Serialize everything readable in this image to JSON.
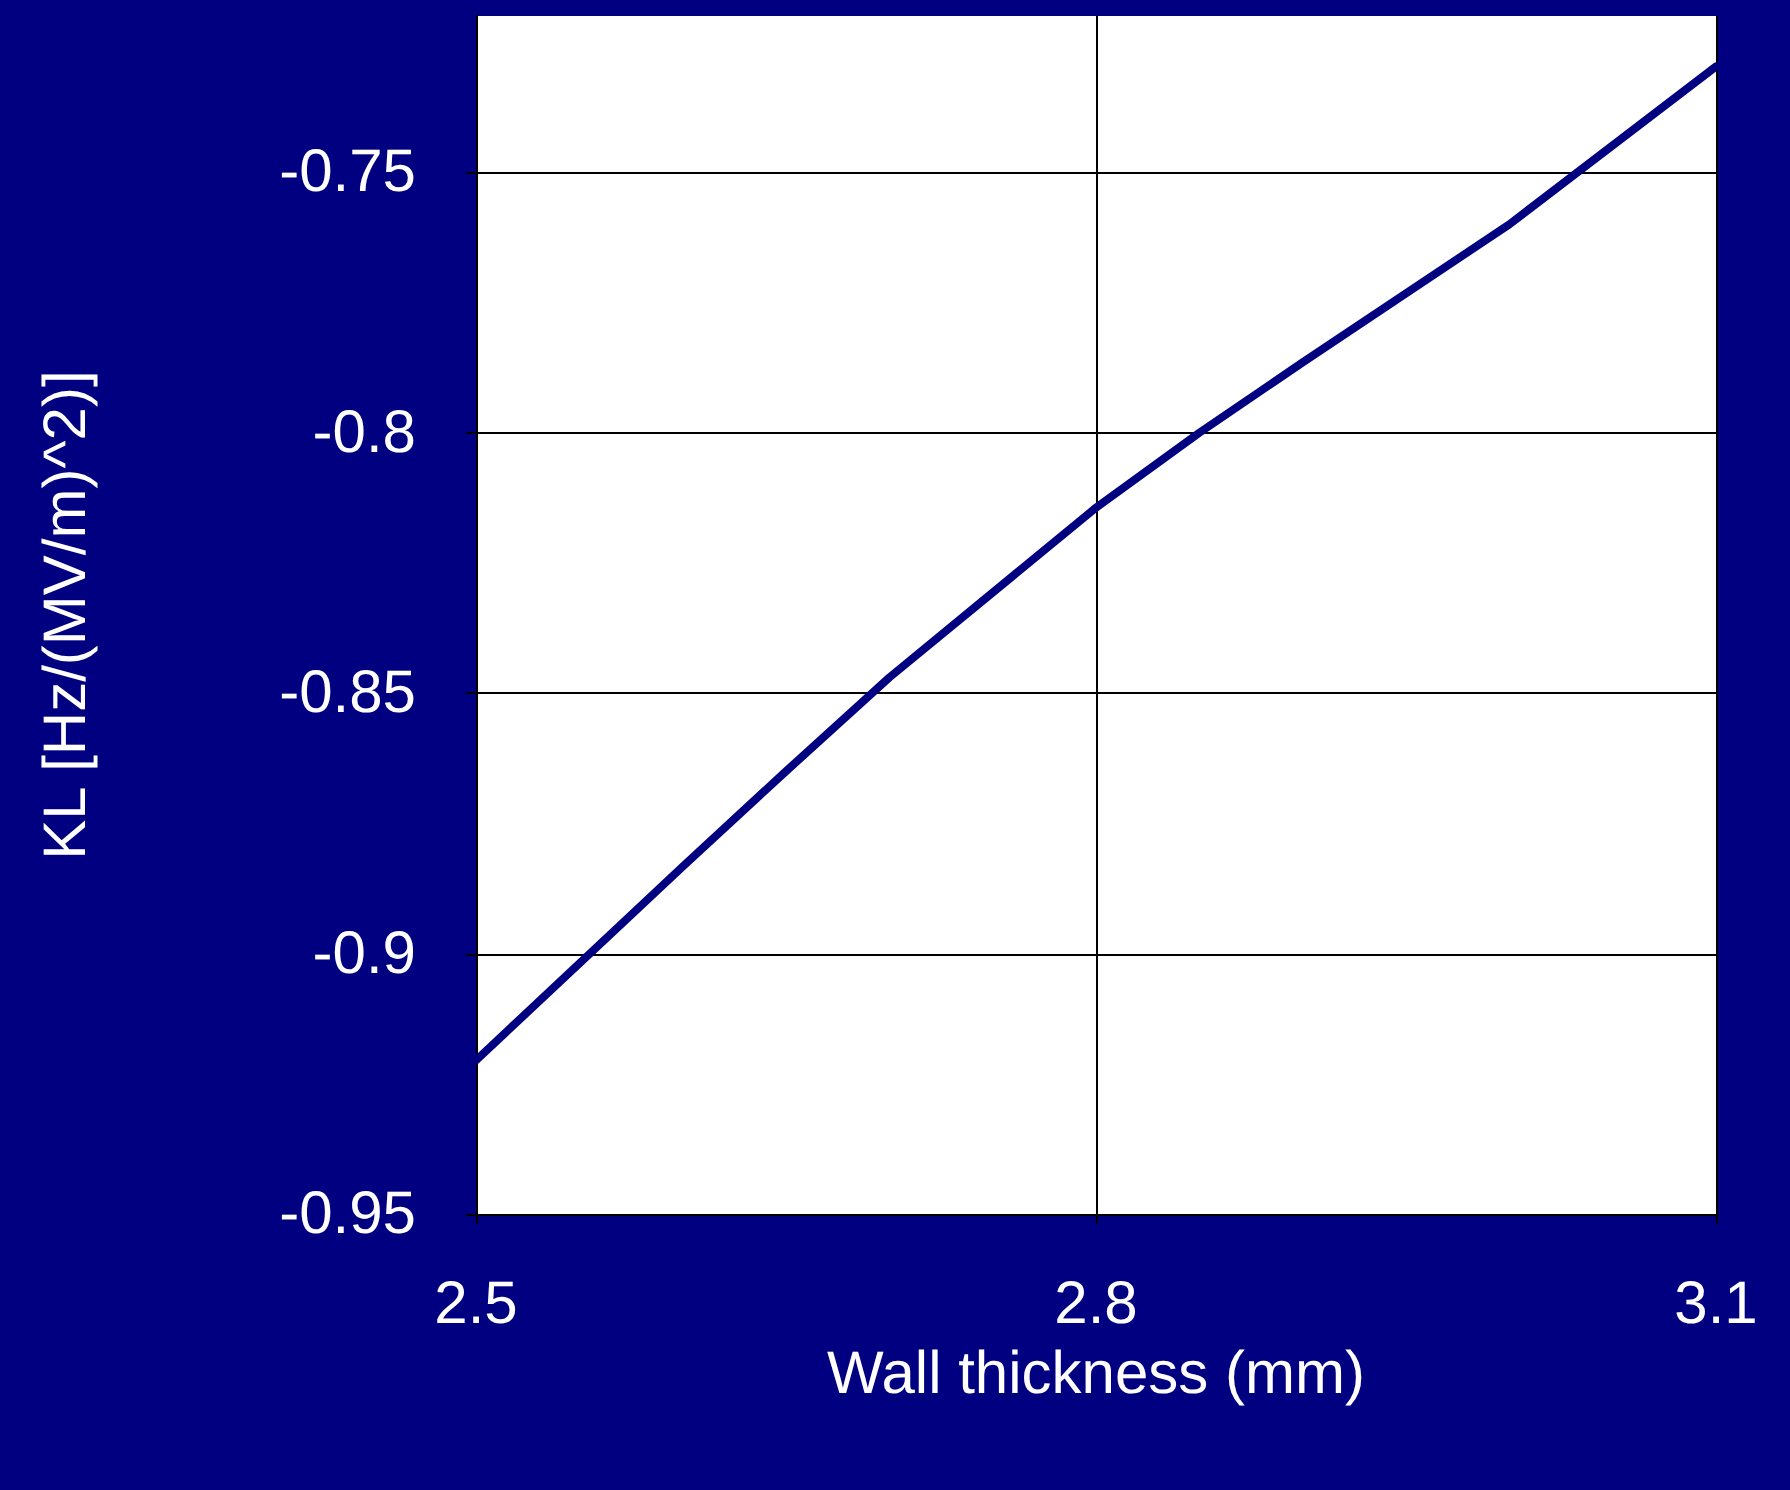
{
  "chart_data": {
    "type": "line",
    "xlabel": "Wall thickness (mm)",
    "ylabel": "KL [Hz/(MV/m)^2)]",
    "x": [
      2.5,
      2.6,
      2.65,
      2.7,
      2.8,
      2.85,
      2.9,
      3.0,
      3.1
    ],
    "series": [
      {
        "color": "#000080",
        "values": [
          -0.9205,
          -0.8833,
          -0.865,
          -0.847,
          -0.8144,
          -0.8,
          -0.7865,
          -0.76,
          -0.7297
        ]
      }
    ],
    "xlim": [
      2.5,
      3.1
    ],
    "xticks": [
      2.5,
      2.8,
      3.1
    ],
    "ylim": [
      -0.95,
      -0.72
    ],
    "yticks": [
      -0.95,
      -0.9,
      -0.85,
      -0.8,
      -0.75
    ],
    "grid": true,
    "marker": "none",
    "line_style": "solid"
  }
}
